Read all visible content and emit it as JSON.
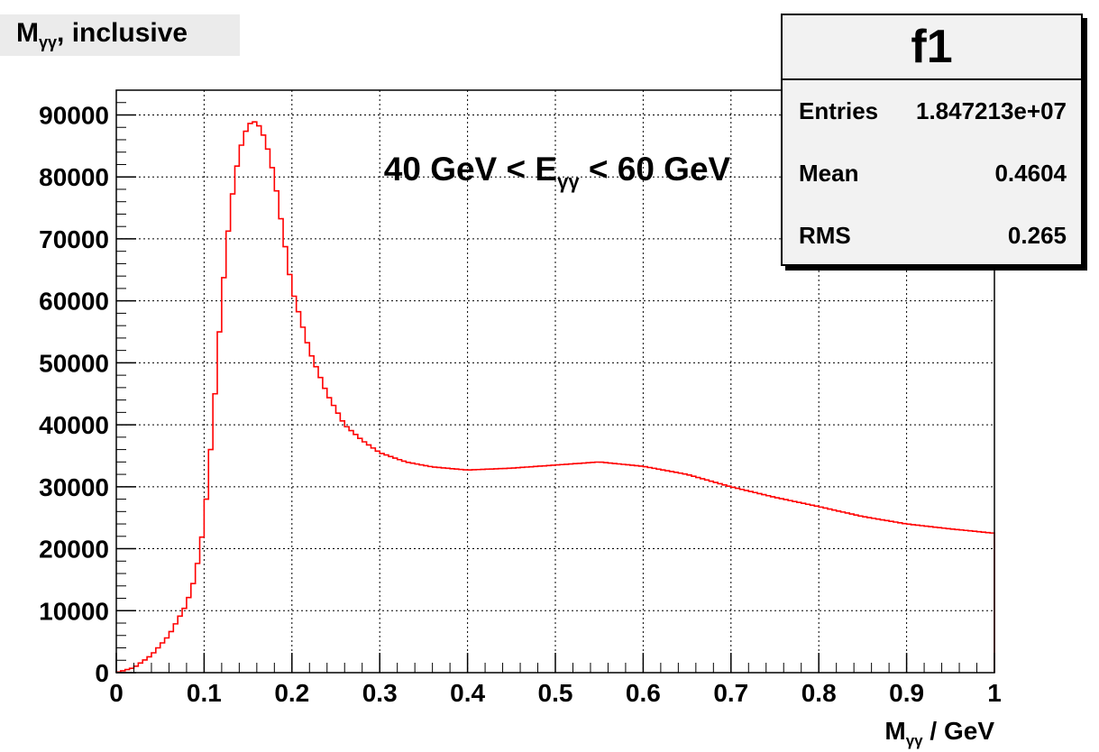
{
  "canvas_title": {
    "main": "M",
    "sub": "γγ",
    "suffix": ", inclusive"
  },
  "annotation": {
    "pre": "40 GeV < E",
    "sub": "γγ",
    "post": " < 60 GeV"
  },
  "stats": {
    "name": "f1",
    "rows": [
      {
        "label": "Entries",
        "value": "1.847213e+07"
      },
      {
        "label": "Mean",
        "value": "0.4604"
      },
      {
        "label": "RMS",
        "value": "0.265"
      }
    ]
  },
  "colors": {
    "line": "#ff0000",
    "axis": "#000000",
    "grid": "#000000"
  },
  "chart_data": {
    "type": "line",
    "style": "histogram-step",
    "xlabel": {
      "main": "M",
      "sub": "γγ",
      "suffix": " / GeV"
    },
    "ylabel": "",
    "xlim": [
      0,
      1
    ],
    "ylim": [
      0,
      94000
    ],
    "xticks": [
      "0",
      "0.1",
      "0.2",
      "0.3",
      "0.4",
      "0.5",
      "0.6",
      "0.7",
      "0.8",
      "0.9",
      "1"
    ],
    "yticks": [
      "0",
      "10000",
      "20000",
      "30000",
      "40000",
      "50000",
      "60000",
      "70000",
      "80000",
      "90000"
    ],
    "grid": true,
    "bin_width": 0.005,
    "x": [
      0.0,
      0.02,
      0.04,
      0.06,
      0.08,
      0.09,
      0.1,
      0.11,
      0.12,
      0.13,
      0.14,
      0.15,
      0.16,
      0.17,
      0.18,
      0.19,
      0.2,
      0.22,
      0.24,
      0.26,
      0.28,
      0.3,
      0.33,
      0.36,
      0.4,
      0.45,
      0.5,
      0.55,
      0.6,
      0.65,
      0.7,
      0.75,
      0.8,
      0.85,
      0.9,
      0.95,
      1.0
    ],
    "y": [
      0,
      800,
      2800,
      6000,
      11000,
      15500,
      24000,
      40000,
      60000,
      75000,
      84000,
      88500,
      89000,
      86000,
      80000,
      71000,
      62000,
      52000,
      45000,
      40000,
      37500,
      35500,
      34000,
      33200,
      32700,
      33000,
      33500,
      34000,
      33300,
      32000,
      30000,
      28300,
      26800,
      25200,
      24000,
      23200,
      22500
    ]
  }
}
